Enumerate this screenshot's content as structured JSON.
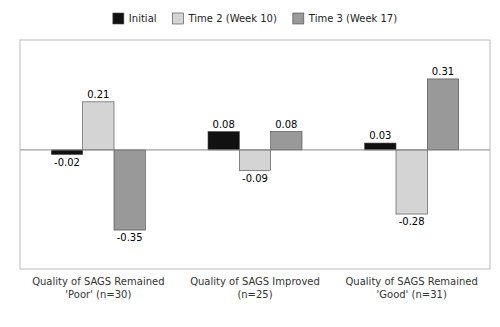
{
  "chart_data": {
    "type": "bar",
    "categories": [
      "Quality of SAGS Remained\n'Poor' (n=30)",
      "Quality of SAGS Improved\n(n=25)",
      "Quality of SAGS Remained\n'Good' (n=31)"
    ],
    "series": [
      {
        "name": "Initial",
        "color": "#111111",
        "values": [
          -0.02,
          0.08,
          0.03
        ]
      },
      {
        "name": "Time 2 (Week 10)",
        "color": "#d4d4d4",
        "values": [
          0.21,
          -0.09,
          -0.28
        ]
      },
      {
        "name": "Time 3 (Week 17)",
        "color": "#999999",
        "values": [
          -0.35,
          0.08,
          0.31
        ]
      }
    ],
    "ylim": [
      -0.52,
      0.48
    ],
    "data_labels": true,
    "tick_labels": "x",
    "legend": "top"
  }
}
